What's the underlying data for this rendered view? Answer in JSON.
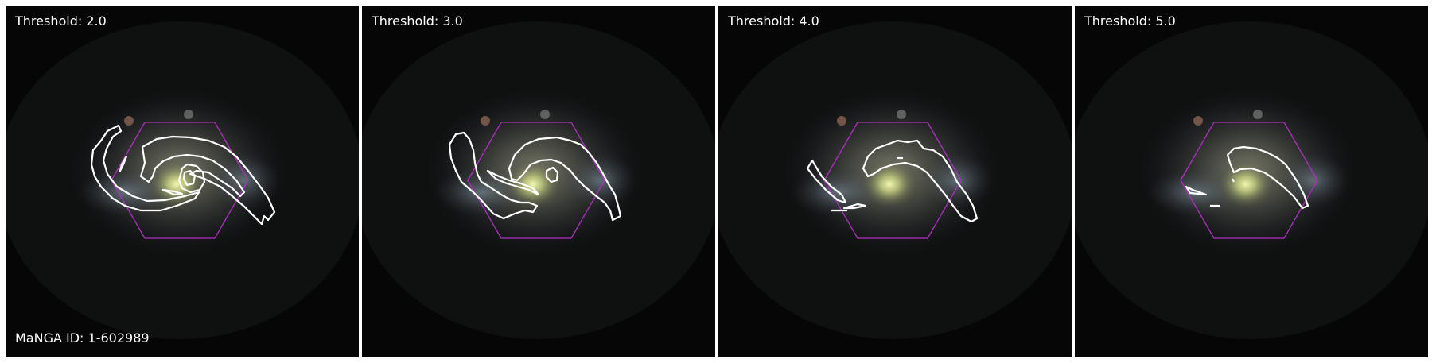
{
  "panels": [
    {
      "threshold_label": "Threshold: 2.0"
    },
    {
      "threshold_label": "Threshold: 3.0"
    },
    {
      "threshold_label": "Threshold: 4.0"
    },
    {
      "threshold_label": "Threshold: 5.0"
    }
  ],
  "manga_id_label": "MaNGA ID: 1-602989",
  "colors": {
    "contour": "#ffffff",
    "ifu_hexagon": "#b02fc4",
    "background": "#050505",
    "separator": "#ffffff"
  }
}
